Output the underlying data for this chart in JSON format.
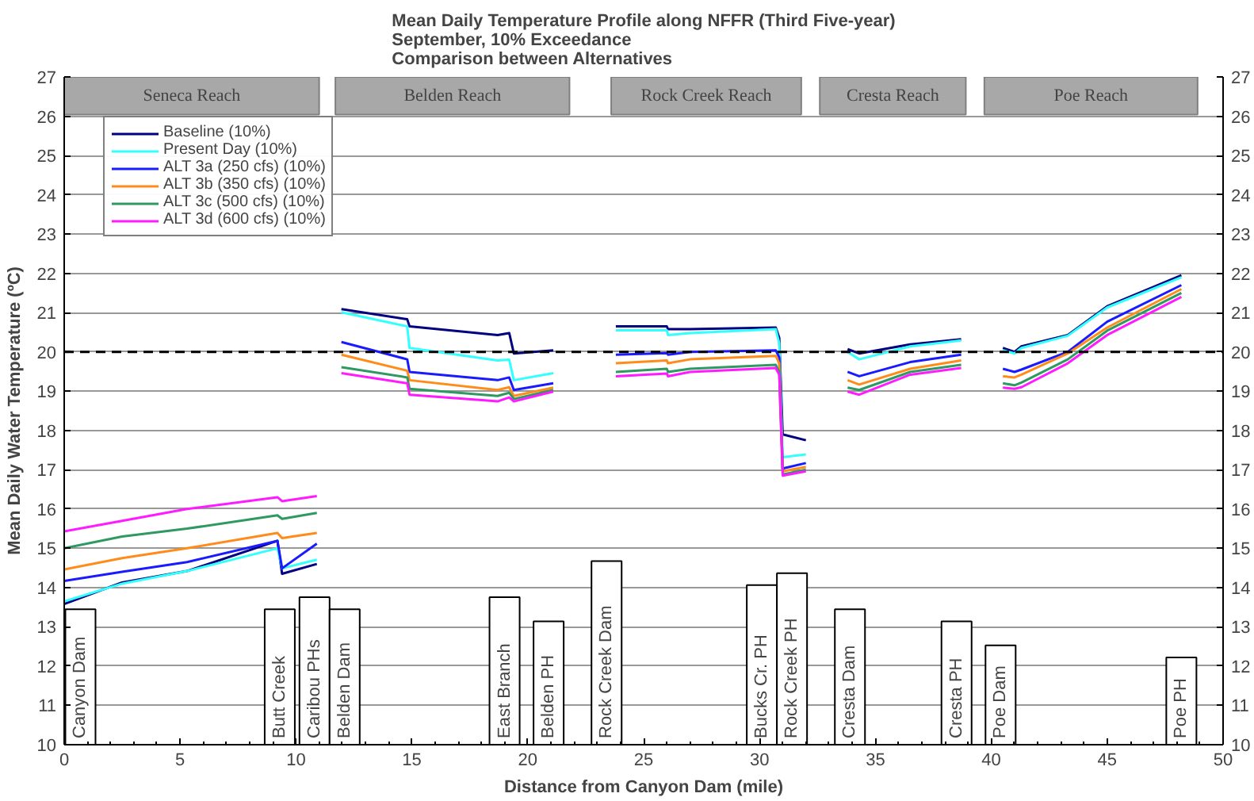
{
  "chart_data": {
    "type": "line",
    "title": "Mean Daily Temperature Profile along NFFR (Third Five-year)",
    "subtitle": "September, 10% Exceedance\nComparison between Alternatives",
    "xlabel": "Distance from Canyon Dam (mile)",
    "ylabel": "Mean Daily Water Temperature (ºC)",
    "x": [
      0,
      2.5,
      5.3,
      9.2,
      9.4,
      10.9,
      11.4,
      11.96,
      14.8,
      14.9,
      18.7,
      19.2,
      19.4,
      21.1,
      22.5,
      23.8,
      26.0,
      26.05,
      27.0,
      30.7,
      30.85,
      31.0,
      32.0,
      33.0,
      33.8,
      34.3,
      36.5,
      38.7,
      39.6,
      40.5,
      41.0,
      41.3,
      43.3,
      45.0,
      48.2
    ],
    "series": [
      {
        "name": "Baseline (10%)",
        "color": "#000080",
        "values": [
          13.58,
          14.13,
          14.42,
          15.19,
          14.35,
          14.6,
          null,
          21.09,
          20.83,
          20.65,
          20.43,
          20.48,
          19.96,
          20.04,
          null,
          20.65,
          20.65,
          20.58,
          20.58,
          20.62,
          20.36,
          17.9,
          17.75,
          null,
          20.07,
          19.96,
          20.19,
          20.32,
          null,
          20.1,
          20.0,
          20.14,
          20.43,
          21.16,
          21.95
        ]
      },
      {
        "name": "Present Day (10%)",
        "color": "#33ffff",
        "values": [
          13.65,
          14.1,
          14.42,
          15.0,
          14.49,
          14.71,
          null,
          21.01,
          20.65,
          20.1,
          19.78,
          19.8,
          19.28,
          19.46,
          null,
          20.55,
          20.55,
          20.43,
          20.48,
          20.58,
          20.22,
          17.32,
          17.39,
          null,
          20.0,
          19.81,
          20.14,
          20.29,
          null,
          20.04,
          19.96,
          20.1,
          20.41,
          21.13,
          21.9
        ]
      },
      {
        "name": "ALT 3a (250 cfs) (10%)",
        "color": "#1a1aff",
        "values": [
          14.17,
          14.4,
          14.65,
          15.19,
          14.49,
          15.12,
          null,
          20.25,
          19.81,
          19.49,
          19.28,
          19.35,
          19.03,
          19.2,
          null,
          19.93,
          19.97,
          19.93,
          20.0,
          20.04,
          19.86,
          17.03,
          17.17,
          null,
          19.49,
          19.38,
          19.74,
          19.93,
          null,
          19.57,
          19.49,
          19.55,
          20.0,
          20.77,
          21.7
        ]
      },
      {
        "name": "ALT 3b (350 cfs) (10%)",
        "color": "#ff8c1a",
        "values": [
          14.46,
          14.75,
          15.0,
          15.39,
          15.26,
          15.39,
          null,
          19.93,
          19.52,
          19.28,
          19.03,
          19.1,
          18.88,
          19.09,
          null,
          19.71,
          19.78,
          19.71,
          19.81,
          19.9,
          19.71,
          16.96,
          17.07,
          null,
          19.28,
          19.17,
          19.57,
          19.78,
          null,
          19.38,
          19.35,
          19.42,
          19.96,
          20.62,
          21.6
        ]
      },
      {
        "name": "ALT 3c (500 cfs) (10%)",
        "color": "#2e9960",
        "values": [
          15.0,
          15.3,
          15.5,
          15.84,
          15.75,
          15.9,
          null,
          19.61,
          19.35,
          19.06,
          18.88,
          18.96,
          18.8,
          19.03,
          null,
          19.49,
          19.57,
          19.49,
          19.57,
          19.67,
          19.49,
          16.88,
          17.0,
          null,
          19.09,
          19.03,
          19.49,
          19.67,
          null,
          19.2,
          19.15,
          19.22,
          19.81,
          20.54,
          21.5
        ]
      },
      {
        "name": "ALT 3d (600 cfs) (10%)",
        "color": "#ff1aff",
        "values": [
          15.43,
          15.7,
          16.0,
          16.3,
          16.2,
          16.33,
          null,
          19.46,
          19.2,
          18.91,
          18.74,
          18.84,
          18.74,
          18.99,
          null,
          19.38,
          19.45,
          19.38,
          19.49,
          19.59,
          19.42,
          16.85,
          16.96,
          null,
          18.99,
          18.91,
          19.42,
          19.59,
          null,
          19.09,
          19.06,
          19.1,
          19.71,
          20.43,
          21.4
        ]
      }
    ],
    "xlim": [
      0,
      50
    ],
    "xticks": [
      0,
      5,
      10,
      15,
      20,
      25,
      30,
      35,
      40,
      45,
      50
    ],
    "ylim": [
      10,
      27
    ],
    "yticks": [
      10,
      11,
      12,
      13,
      14,
      15,
      16,
      17,
      18,
      19,
      20,
      21,
      22,
      23,
      24,
      25,
      26,
      27
    ],
    "y2lim": [
      10,
      27
    ],
    "y2ticks": [
      10,
      11,
      12,
      13,
      14,
      15,
      16,
      17,
      18,
      19,
      20,
      21,
      22,
      23,
      24,
      25,
      26,
      27
    ],
    "ref_lines": [
      {
        "axis": "y",
        "value": 20,
        "color": "#000000",
        "line_style": "dashed"
      }
    ],
    "bands": [
      {
        "axis": "x",
        "from": 0,
        "to": 11,
        "label": "Seneca Reach",
        "color": "#a8a8a8"
      },
      {
        "axis": "x",
        "from": 11.7,
        "to": 21.8,
        "label": "Belden Reach",
        "color": "#a8a8a8"
      },
      {
        "axis": "x",
        "from": 23.6,
        "to": 31.8,
        "label": "Rock Creek Reach",
        "color": "#a8a8a8"
      },
      {
        "axis": "x",
        "from": 32.6,
        "to": 38.9,
        "label": "Cresta Reach",
        "color": "#a8a8a8"
      },
      {
        "axis": "x",
        "from": 39.7,
        "to": 48.9,
        "label": "Poe Reach",
        "color": "#a8a8a8"
      },
      {
        "axis": "x",
        "from": 0.05,
        "to": 1.35,
        "label": "Canyon Dam",
        "color": "#ffffff"
      },
      {
        "axis": "x",
        "from": 8.65,
        "to": 9.95,
        "label": "Butt Creek",
        "color": "#ffffff"
      },
      {
        "axis": "x",
        "from": 10.15,
        "to": 11.45,
        "label": "Caribou PHs",
        "color": "#ffffff"
      },
      {
        "axis": "x",
        "from": 11.45,
        "to": 12.75,
        "label": "Belden Dam",
        "color": "#ffffff"
      },
      {
        "axis": "x",
        "from": 18.35,
        "to": 19.65,
        "label": "East Branch",
        "color": "#ffffff"
      },
      {
        "axis": "x",
        "from": 20.25,
        "to": 21.55,
        "label": "Belden PH",
        "color": "#ffffff"
      },
      {
        "axis": "x",
        "from": 22.75,
        "to": 24.05,
        "label": "Rock Creek Dam",
        "color": "#ffffff"
      },
      {
        "axis": "x",
        "from": 29.45,
        "to": 30.75,
        "label": "Bucks Cr. PH",
        "color": "#ffffff"
      },
      {
        "axis": "x",
        "from": 30.75,
        "to": 32.05,
        "label": "Rock Creek PH",
        "color": "#ffffff"
      },
      {
        "axis": "x",
        "from": 33.25,
        "to": 34.55,
        "label": "Cresta Dam",
        "color": "#ffffff"
      },
      {
        "axis": "x",
        "from": 37.85,
        "to": 39.15,
        "label": "Cresta PH",
        "color": "#ffffff"
      },
      {
        "axis": "x",
        "from": 39.75,
        "to": 41.05,
        "label": "Poe Dam",
        "color": "#ffffff"
      },
      {
        "axis": "x",
        "from": 47.55,
        "to": 48.85,
        "label": "Poe PH",
        "color": "#ffffff"
      }
    ],
    "grid": "y",
    "legend": "top left",
    "marker": "none",
    "line_style": "solid"
  }
}
